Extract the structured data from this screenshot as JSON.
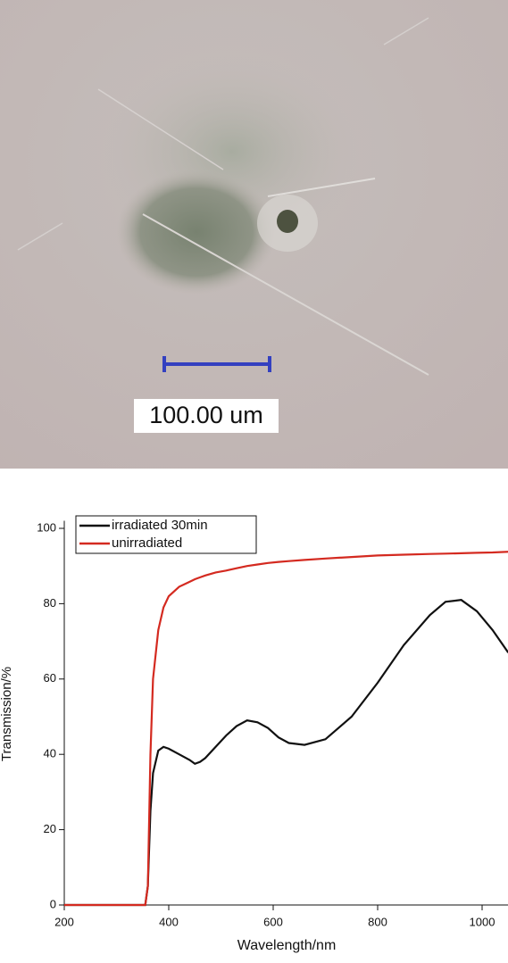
{
  "image": {
    "scale_bar_label": "100.00 um"
  },
  "chart_data": {
    "type": "line",
    "x_label": "Wavelength/nm",
    "y_label": "Transmission/%",
    "x": [
      200,
      355,
      360,
      365,
      370,
      380,
      390,
      400,
      420,
      440,
      450,
      460,
      470,
      490,
      510,
      530,
      550,
      570,
      590,
      610,
      630,
      660,
      700,
      750,
      800,
      850,
      900,
      930,
      960,
      990,
      1020,
      1050
    ],
    "series": [
      {
        "name": "irradiated 30min",
        "color": "#111111",
        "values": [
          0,
          0,
          5,
          25,
          35,
          41,
          42,
          41.5,
          40,
          38.5,
          37.5,
          38,
          39,
          42,
          45,
          47.5,
          49,
          48.5,
          47,
          44.5,
          43,
          42.5,
          44,
          50,
          59,
          69,
          77,
          80.5,
          81,
          78,
          73,
          67
        ]
      },
      {
        "name": "unirradiated",
        "color": "#d42a20",
        "values": [
          0,
          0,
          5,
          40,
          60,
          73,
          79,
          82,
          84.5,
          85.8,
          86.5,
          87,
          87.5,
          88.3,
          88.8,
          89.4,
          90,
          90.4,
          90.8,
          91.1,
          91.3,
          91.6,
          92,
          92.4,
          92.8,
          93,
          93.2,
          93.3,
          93.4,
          93.5,
          93.6,
          93.8
        ]
      }
    ],
    "xlim": [
      200,
      1050
    ],
    "ylim": [
      0,
      102
    ],
    "xticks": [
      200,
      400,
      600,
      800,
      1000
    ],
    "yticks": [
      0,
      20,
      40,
      60,
      80,
      100
    ],
    "legend": "upper left"
  }
}
